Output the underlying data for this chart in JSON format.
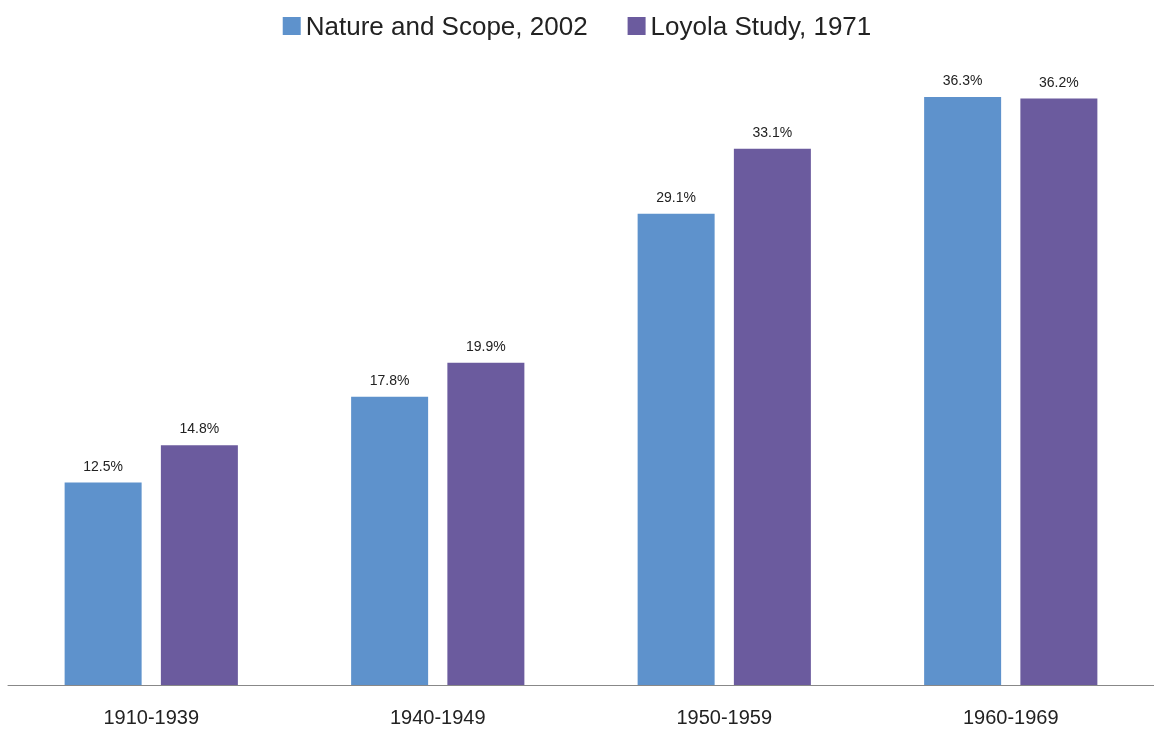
{
  "chart_data": {
    "type": "bar",
    "categories": [
      "1910-1939",
      "1940-1949",
      "1950-1959",
      "1960-1969"
    ],
    "series": [
      {
        "name": "Nature and Scope, 2002",
        "color": "#5e92cc",
        "values": [
          12.5,
          17.8,
          29.1,
          36.3
        ],
        "value_labels": [
          "12.5%",
          "17.8%",
          "29.1%",
          "36.3%"
        ]
      },
      {
        "name": "Loyola Study, 1971",
        "color": "#6b5b9e",
        "values": [
          14.8,
          19.9,
          33.1,
          36.2
        ],
        "value_labels": [
          "14.8%",
          "19.9%",
          "33.1%",
          "36.2%"
        ]
      }
    ],
    "legend": "top",
    "grid": false
  }
}
